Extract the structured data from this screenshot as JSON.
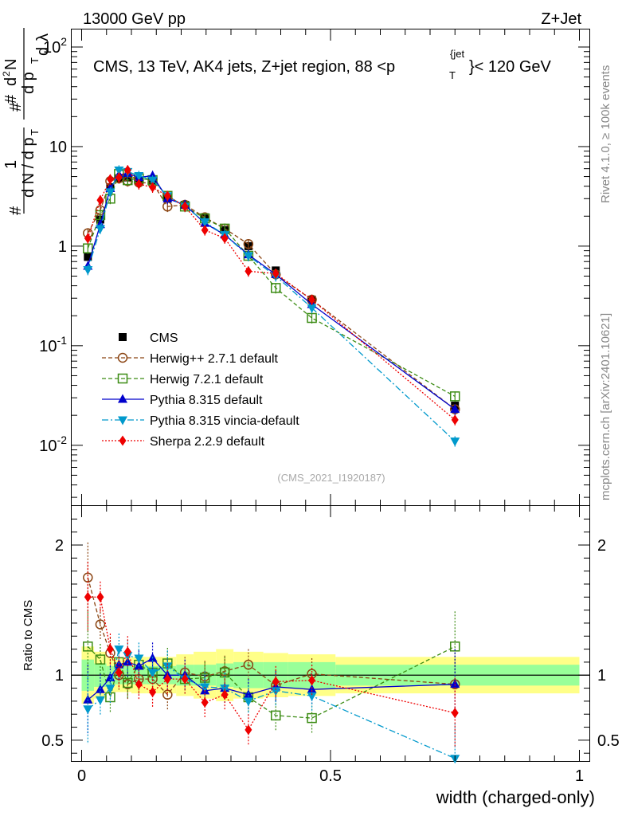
{
  "header": {
    "left": "13000 GeV pp",
    "right": "Z+Jet"
  },
  "side_labels": {
    "rivet": "Rivet 4.1.0, ≥ 100k events",
    "mcplots": "mcplots.cern.ch [arXiv:2401.10621]"
  },
  "chart_data": [
    {
      "panel": "main",
      "type": "line",
      "title": "CMS, 13 TeV, AK4 jets, Z+jet region, 88 <p_T^{jet}< 120 GeV",
      "ylabel": "1/(dN/dp_T) d²N/(dp_T dλ)",
      "xlabel": "",
      "yscale": "log",
      "xlim": [
        -0.02,
        1.02
      ],
      "ylim": [
        0.0025,
        150
      ],
      "y_ticks": [
        {
          "value": 100,
          "label": "10^2"
        },
        {
          "value": 10,
          "label": "10"
        },
        {
          "value": 1,
          "label": "1"
        },
        {
          "value": 0.1,
          "label": "10^-1"
        },
        {
          "value": 0.01,
          "label": "10^-2"
        }
      ],
      "watermark": "(CMS_2021_I1920187)",
      "x": [
        0.0125,
        0.0375,
        0.0575,
        0.075,
        0.0925,
        0.115,
        0.1425,
        0.1725,
        0.2075,
        0.2475,
        0.2875,
        0.335,
        0.39,
        0.4625,
        0.75
      ],
      "series": [
        {
          "name": "CMS",
          "style": "data",
          "color": "#000000",
          "values": [
            0.78,
            1.85,
            3.9,
            4.8,
            4.9,
            4.5,
            4.5,
            3.0,
            2.6,
            1.95,
            1.45,
            1.0,
            0.57,
            0.29,
            0.025
          ]
        },
        {
          "name": "Herwig++ 2.7.1 default",
          "style": "open-circle",
          "color": "#8B4513",
          "dash": "5,3",
          "values": [
            1.35,
            2.3,
            4.5,
            4.8,
            4.5,
            4.35,
            4.3,
            2.5,
            2.6,
            1.95,
            1.5,
            1.05,
            0.52,
            0.29,
            0.023
          ]
        },
        {
          "name": "Herwig 7.2.1 default",
          "style": "open-square",
          "color": "#3C8C14",
          "dash": "5,3",
          "values": [
            0.95,
            2.05,
            3.0,
            5.3,
            4.6,
            4.8,
            4.6,
            3.2,
            2.5,
            1.9,
            1.5,
            0.8,
            0.38,
            0.19,
            0.031
          ]
        },
        {
          "name": "Pythia 8.315 default",
          "style": "triangle-up",
          "color": "#0000CC",
          "dash": "",
          "values": [
            0.63,
            1.65,
            3.8,
            5.2,
            5.4,
            4.9,
            5.1,
            3.0,
            2.6,
            1.7,
            1.3,
            0.82,
            0.52,
            0.26,
            0.023
          ]
        },
        {
          "name": "Pythia 8.315 vincia-default",
          "style": "triangle-down",
          "color": "#0099CC",
          "dash": "8,3,2,3",
          "values": [
            0.58,
            1.5,
            3.5,
            5.8,
            5.6,
            5.1,
            4.6,
            3.2,
            2.5,
            1.75,
            1.3,
            0.8,
            0.5,
            0.24,
            0.011
          ]
        },
        {
          "name": "Sherpa 2.2.9 default",
          "style": "diamond",
          "color": "#EE0000",
          "dash": "2,2",
          "values": [
            1.2,
            2.9,
            4.7,
            4.9,
            5.8,
            4.2,
            3.9,
            3.2,
            2.5,
            1.45,
            1.2,
            0.56,
            0.53,
            0.29,
            0.018
          ]
        }
      ]
    },
    {
      "panel": "ratio",
      "type": "line",
      "ylabel": "Ratio to CMS",
      "xlabel": "width (charged-only)",
      "xlim": [
        -0.02,
        1.02
      ],
      "ylim": [
        0.34,
        2.3
      ],
      "x_ticks": [
        0,
        0.5,
        1
      ],
      "y_ticks": [
        0.5,
        1,
        2
      ],
      "x": [
        0.0125,
        0.0375,
        0.0575,
        0.075,
        0.0925,
        0.115,
        0.1425,
        0.1725,
        0.2075,
        0.2475,
        0.2875,
        0.335,
        0.39,
        0.4625,
        0.75
      ],
      "uncertainty_bands": {
        "x_edges": [
          0,
          0.025,
          0.05,
          0.065,
          0.085,
          0.1,
          0.13,
          0.155,
          0.19,
          0.225,
          0.27,
          0.305,
          0.365,
          0.415,
          0.51,
          1.0
        ],
        "green_half_width": [
          0.12,
          0.09,
          0.07,
          0.07,
          0.07,
          0.07,
          0.07,
          0.07,
          0.08,
          0.08,
          0.09,
          0.1,
          0.1,
          0.1,
          0.08
        ],
        "yellow_half_width": [
          0.22,
          0.18,
          0.14,
          0.13,
          0.13,
          0.14,
          0.14,
          0.14,
          0.16,
          0.18,
          0.2,
          0.18,
          0.17,
          0.16,
          0.14
        ]
      },
      "series": [
        {
          "name": "Herwig++ 2.7.1 default",
          "color": "#8B4513",
          "values": [
            1.75,
            1.39,
            1.17,
            1.0,
            0.93,
            0.97,
            0.97,
            0.85,
            1.02,
            0.99,
            1.03,
            1.08,
            0.92,
            1.01,
            0.93
          ]
        },
        {
          "name": "Herwig 7.2.1 default",
          "color": "#3C8C14",
          "values": [
            1.22,
            1.12,
            0.83,
            1.1,
            0.94,
            1.08,
            1.02,
            1.09,
            0.97,
            0.98,
            1.02,
            0.83,
            0.69,
            0.67,
            1.22
          ]
        },
        {
          "name": "Pythia 8.315 default",
          "color": "#0000CC",
          "values": [
            0.81,
            0.89,
            0.98,
            1.08,
            1.1,
            1.07,
            1.13,
            1.0,
            1.0,
            0.88,
            0.9,
            0.85,
            0.91,
            0.89,
            0.93
          ]
        },
        {
          "name": "Pythia 8.315 vincia-default",
          "color": "#0099CC",
          "values": [
            0.74,
            0.81,
            0.9,
            1.2,
            1.15,
            1.13,
            1.02,
            1.07,
            0.97,
            0.91,
            0.9,
            0.8,
            0.88,
            0.84,
            0.36
          ]
        },
        {
          "name": "Sherpa 2.2.9 default",
          "color": "#EE0000",
          "values": [
            1.6,
            1.6,
            1.2,
            1.02,
            1.18,
            0.93,
            0.87,
            0.97,
            0.97,
            0.79,
            0.85,
            0.58,
            0.95,
            0.96,
            0.71
          ]
        }
      ]
    }
  ]
}
